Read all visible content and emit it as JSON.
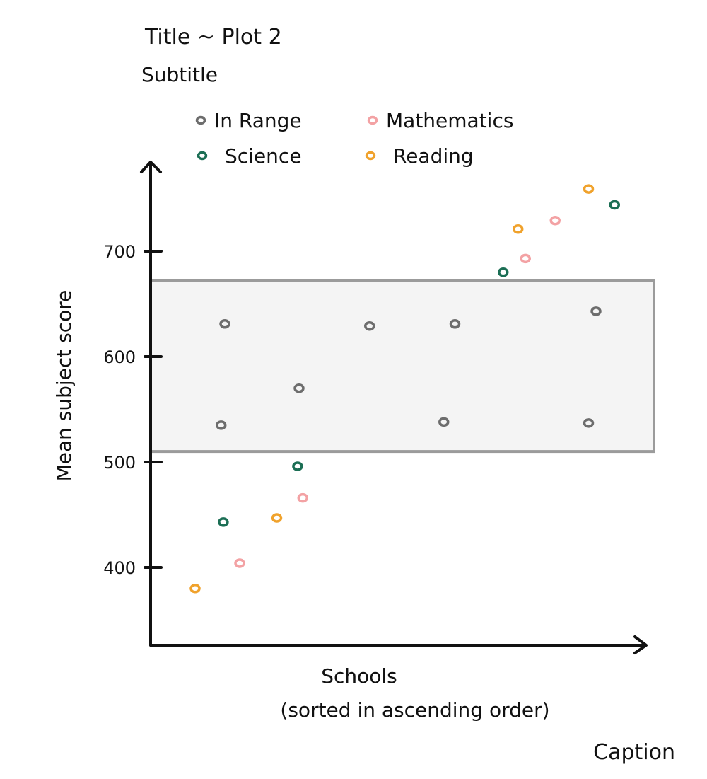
{
  "chart_data": {
    "type": "scatter",
    "title": "Title ~ Plot 2",
    "subtitle": "Subtitle",
    "xlabel": "Schools\n(sorted in ascending order)",
    "ylabel": "Mean subject score",
    "caption": "Caption",
    "y_ticks": [
      400,
      500,
      600,
      700
    ],
    "ylim": [
      335,
      790
    ],
    "xlim": [
      0,
      7
    ],
    "legend_placement": "top",
    "range_band": {
      "name": "In Range",
      "y_min": 510,
      "y_max": 672,
      "color": "#f4f4f4",
      "border": "#9b9b9b"
    },
    "series": [
      {
        "name": "In Range",
        "color": "#6d6d6d",
        "points": [
          {
            "x": 1.0,
            "y": 631
          },
          {
            "x": 0.95,
            "y": 535
          },
          {
            "x": 2.0,
            "y": 570
          },
          {
            "x": 2.95,
            "y": 629
          },
          {
            "x": 3.95,
            "y": 538
          },
          {
            "x": 4.1,
            "y": 631
          },
          {
            "x": 6.0,
            "y": 643
          },
          {
            "x": 5.9,
            "y": 537
          }
        ]
      },
      {
        "name": "Mathematics",
        "color": "#f3a2a4",
        "points": [
          {
            "x": 1.2,
            "y": 404
          },
          {
            "x": 2.05,
            "y": 466
          },
          {
            "x": 5.05,
            "y": 693
          },
          {
            "x": 5.45,
            "y": 729
          }
        ]
      },
      {
        "name": "Science",
        "color": "#1b6e54",
        "points": [
          {
            "x": 0.98,
            "y": 443
          },
          {
            "x": 1.98,
            "y": 496
          },
          {
            "x": 4.75,
            "y": 680
          },
          {
            "x": 6.25,
            "y": 744
          }
        ]
      },
      {
        "name": "Reading",
        "color": "#f0a22c",
        "points": [
          {
            "x": 0.6,
            "y": 380
          },
          {
            "x": 1.7,
            "y": 447
          },
          {
            "x": 4.95,
            "y": 721
          },
          {
            "x": 5.9,
            "y": 759
          }
        ]
      }
    ]
  }
}
